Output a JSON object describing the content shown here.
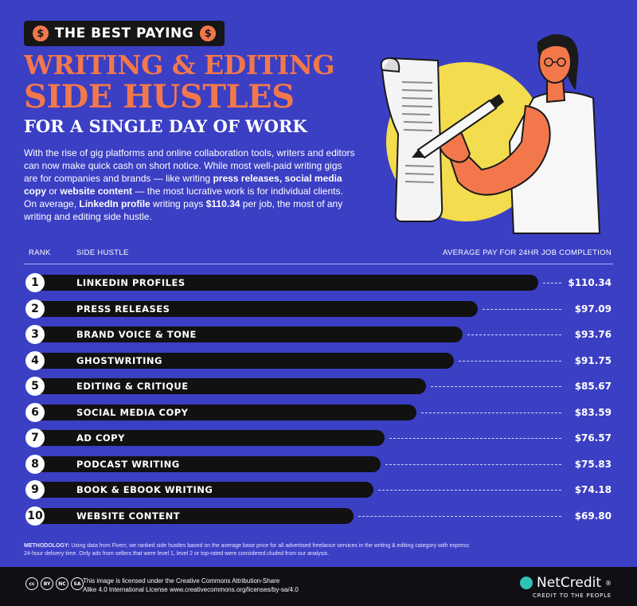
{
  "kicker": {
    "text": "THE BEST PAYING",
    "coin_symbol": "$"
  },
  "title": {
    "line1": "WRITING & EDITING",
    "line2": "SIDE HUSTLES",
    "line3": "FOR A SINGLE DAY OF WORK"
  },
  "intro": {
    "p1": "With the rise of gig platforms and online collaboration tools, writers and editors can now make quick cash on short notice. While most well-paid writing gigs are for companies and brands — like writing ",
    "b1": "press releases,",
    "p2": " ",
    "b2": "social media copy",
    "p3": " or ",
    "b3": "website content",
    "p4": " — the most lucrative work is for individual clients. On average, ",
    "b4": "LinkedIn profile",
    "p5": " writing pays ",
    "b5": "$110.34",
    "p6": " per job, the most of any writing and editing side hustle."
  },
  "headers": {
    "rank": "RANK",
    "hustle": "SIDE HUSTLE",
    "pay": "AVERAGE PAY FOR 24HR JOB COMPLETION"
  },
  "chart_data": {
    "type": "bar",
    "orientation": "horizontal",
    "title": "WRITING & EDITING SIDE HUSTLES",
    "categories": [
      "LINKEDIN PROFILES",
      "PRESS RELEASES",
      "BRAND VOICE & TONE",
      "GHOSTWRITING",
      "EDITING & CRITIQUE",
      "SOCIAL MEDIA COPY",
      "AD COPY",
      "PODCAST WRITING",
      "BOOK & EBOOK WRITING",
      "WEBSITE CONTENT"
    ],
    "ranks": [
      "1",
      "2",
      "3",
      "4",
      "5",
      "6",
      "7",
      "8",
      "9",
      "10"
    ],
    "values": [
      110.34,
      97.09,
      93.76,
      91.75,
      85.67,
      83.59,
      76.57,
      75.83,
      74.18,
      69.8
    ],
    "value_labels": [
      "$110.34",
      "$97.09",
      "$93.76",
      "$91.75",
      "$85.67",
      "$83.59",
      "$76.57",
      "$75.83",
      "$74.18",
      "$69.80"
    ],
    "ylabel": "AVERAGE PAY FOR 24HR JOB COMPLETION",
    "grid": false,
    "colors": {
      "bar": "#111111",
      "background": "#3b3fc4",
      "accent": "#f2784b"
    }
  },
  "methodology": {
    "label": "METHODOLOGY:",
    "text": " Using data from Fiverr, we ranked side hustles based on the average base price for all advertised freelance services in the writing & editing category with express 24-hour delivery time. Only ads from sellers that were level 1, level 2 or top-rated were considered.cluded from our analysis."
  },
  "footer": {
    "cc_badges": [
      "cc",
      "BY",
      "NC",
      "SA"
    ],
    "license_line1": "This image is licensed under the Creative Commons Attribution-Share",
    "license_line2": "Alike 4.0 International License www.creativecommons.org/licenses/by-sa/4.0",
    "brand": "NetCredit",
    "brand_mark": "®",
    "tagline": "CREDIT TO THE PEOPLE"
  }
}
